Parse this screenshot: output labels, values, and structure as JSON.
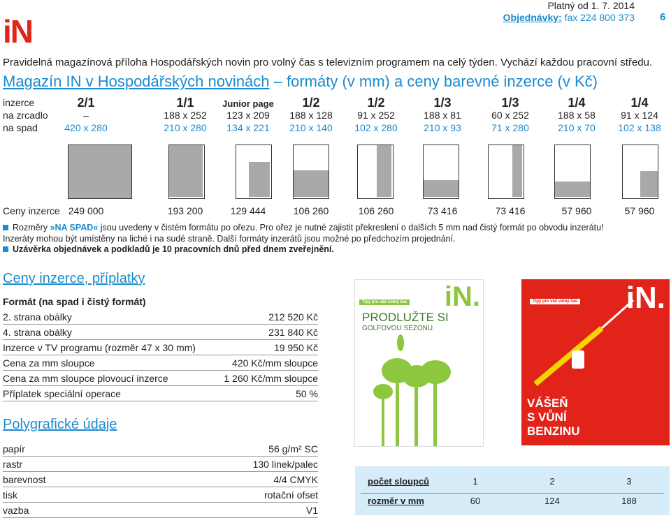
{
  "header": {
    "logo": "iN",
    "valid": "Platný od 1. 7. 2014",
    "order_label": "Objednávky:",
    "order_fax": "fax 224 800 373",
    "page": "6"
  },
  "intro": "Pravidelná magazínová příloha Hospodářských novin pro volný čas s televizním programem na celý týden. Vychází každou pracovní středu.",
  "heading": {
    "link": "Magazín IN v Hospodářských novinách",
    "rest": "– formáty (v mm) a ceny barevné inzerce (v Kč)"
  },
  "formats": {
    "row_labels": [
      "inzerce",
      "na zrcadlo",
      "na spad"
    ],
    "price_label": "Ceny inzerce",
    "columns": [
      {
        "name": "2/1",
        "mirror": "–",
        "bleed": "420 x 280",
        "price": "249 000"
      },
      {
        "name": "1/1",
        "mirror": "188 x 252",
        "bleed": "210 x 280",
        "price": "193 200"
      },
      {
        "name": "Junior page",
        "mirror": "123 x 209",
        "bleed": "134 x 221",
        "price": "129 444"
      },
      {
        "name": "1/2",
        "mirror": "188 x 128",
        "bleed": "210 x 140",
        "price": "106 260"
      },
      {
        "name": "1/2",
        "mirror": "91 x 252",
        "bleed": "102 x 280",
        "price": "106 260"
      },
      {
        "name": "1/3",
        "mirror": "188 x 81",
        "bleed": "210 x 93",
        "price": "73 416"
      },
      {
        "name": "1/3",
        "mirror": "60 x 252",
        "bleed": "71 x 280",
        "price": "73 416"
      },
      {
        "name": "1/4",
        "mirror": "188 x 58",
        "bleed": "210 x 70",
        "price": "57 960"
      },
      {
        "name": "1/4",
        "mirror": "91 x 124",
        "bleed": "102 x 138",
        "price": "57 960"
      }
    ]
  },
  "notes": {
    "first": {
      "a": "Rozměry",
      "b": "»NA SPAD«",
      "c": "jsou uvedeny v čistém formátu po ořezu. Pro ořez je nutné zajistit překreslení o dalších 5 mm nad čistý formát po obvodu inzerátu!"
    },
    "second": "Inzeráty mohou být umístěny na liché i na sudé straně. Další formáty inzerátů jsou možné po předchozím projednání.",
    "deadline": "Uzávěrka objednávek a podkladů je 10 pracovních dnů před dnem zveřejnění."
  },
  "prices": {
    "title": "Ceny inzerce, příplatky",
    "subtitle": "Formát (na spad i čistý formát)",
    "rows": [
      {
        "label": "2. strana obálky",
        "value": "212 520 Kč"
      },
      {
        "label": "4. strana obálky",
        "value": "231 840 Kč"
      },
      {
        "label": "Inzerce v TV programu (rozměr 47 x 30 mm)",
        "value": "19 950 Kč"
      },
      {
        "label": "Cena za mm sloupce",
        "value": "420 Kč/mm sloupce"
      },
      {
        "label": "Cena za mm sloupce plovoucí inzerce",
        "value": "1 260 Kč/mm sloupce"
      },
      {
        "label": "Příplatek speciální operace",
        "value": "50 %"
      }
    ]
  },
  "print": {
    "title": "Polygrafické údaje",
    "rows": [
      {
        "label": "papír",
        "value": "56 g/m² SC"
      },
      {
        "label": "rastr",
        "value": "130 linek/palec"
      },
      {
        "label": "barevnost",
        "value": "4/4 CMYK"
      },
      {
        "label": "tisk",
        "value": "rotační ofset"
      },
      {
        "label": "vazba",
        "value": "V1"
      }
    ]
  },
  "covers": [
    {
      "logo": "iN.",
      "tagline": "Tipy pro váš volný čas",
      "headline": "PRODLUŽTE SI",
      "subline": "GOLFOVOU SEZONU"
    },
    {
      "logo": "iN.",
      "tagline": "Tipy pro váš volný čas",
      "headline": [
        "VÁŠEŇ",
        "S VŮNÍ",
        "BENZINU"
      ]
    }
  ],
  "columns_table": {
    "rows": [
      {
        "label": "počet sloupců",
        "values": [
          "1",
          "2",
          "3"
        ]
      },
      {
        "label": "rozměr v mm",
        "values": [
          "60",
          "124",
          "188"
        ]
      }
    ]
  }
}
